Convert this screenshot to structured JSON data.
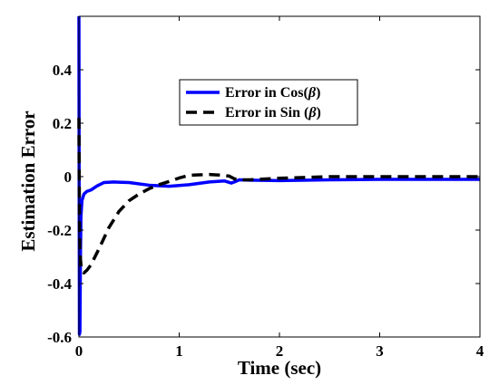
{
  "chart_data": {
    "type": "line",
    "xlabel": "Time (sec)",
    "ylabel": "Estimation Error",
    "xlim": [
      0,
      4
    ],
    "ylim": [
      -0.6,
      0.6
    ],
    "xticks": [
      0,
      1,
      2,
      3,
      4
    ],
    "xtick_labels": [
      "0",
      "1",
      "2",
      "3",
      "4"
    ],
    "yticks": [
      -0.6,
      -0.4,
      -0.2,
      0,
      0.2,
      0.4
    ],
    "ytick_labels": [
      "-0.6",
      "-0.4",
      "-0.2",
      "0",
      "0.2",
      "0.4"
    ],
    "grid": false,
    "legend_position": "top-center",
    "series": [
      {
        "name": "Error in Cos(β)",
        "legend_prefix": "Error in Cos(",
        "legend_symbol": "β",
        "legend_suffix": ")",
        "color": "#0000ff",
        "style": "solid",
        "x": [
          0,
          0.002,
          0.005,
          0.01,
          0.015,
          0.02,
          0.03,
          0.05,
          0.08,
          0.12,
          0.18,
          0.25,
          0.35,
          0.5,
          0.7,
          0.9,
          1.1,
          1.3,
          1.45,
          1.52,
          1.55,
          1.6,
          1.7,
          2.0,
          2.5,
          3.0,
          3.5,
          4.0
        ],
        "y": [
          0.6,
          0.0,
          -0.59,
          -0.58,
          -0.3,
          -0.15,
          -0.09,
          -0.065,
          -0.055,
          -0.05,
          -0.035,
          -0.022,
          -0.02,
          -0.022,
          -0.032,
          -0.036,
          -0.03,
          -0.02,
          -0.016,
          -0.024,
          -0.02,
          -0.012,
          -0.013,
          -0.015,
          -0.012,
          -0.01,
          -0.01,
          -0.01
        ]
      },
      {
        "name": "Error in Sin (β)",
        "legend_prefix": "Error in Sin (",
        "legend_symbol": "β",
        "legend_suffix": ")",
        "color": "#000000",
        "style": "dashed",
        "x": [
          0,
          0.003,
          0.006,
          0.01,
          0.02,
          0.03,
          0.05,
          0.08,
          0.12,
          0.2,
          0.3,
          0.4,
          0.5,
          0.6,
          0.7,
          0.8,
          0.9,
          1.0,
          1.1,
          1.2,
          1.3,
          1.4,
          1.5,
          1.55,
          1.6,
          1.7,
          2.0,
          2.5,
          3.0,
          3.5,
          4.0
        ],
        "y": [
          0.22,
          0.0,
          -0.2,
          -0.28,
          -0.33,
          -0.35,
          -0.36,
          -0.35,
          -0.33,
          -0.27,
          -0.19,
          -0.13,
          -0.09,
          -0.065,
          -0.045,
          -0.03,
          -0.018,
          -0.005,
          0.005,
          0.007,
          0.008,
          0.006,
          0.002,
          -0.008,
          -0.012,
          -0.012,
          -0.006,
          0.0,
          0.0,
          0.0,
          0.0
        ]
      }
    ]
  }
}
